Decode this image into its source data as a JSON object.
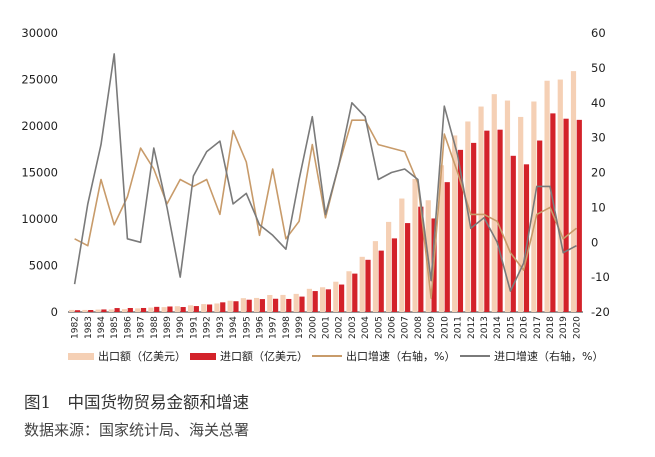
{
  "chart_data": {
    "type": "bar",
    "categories": [
      "1982",
      "1983",
      "1984",
      "1985",
      "1986",
      "1987",
      "1988",
      "1989",
      "1990",
      "1991",
      "1992",
      "1993",
      "1994",
      "1995",
      "1996",
      "1997",
      "1998",
      "1999",
      "2000",
      "2001",
      "2002",
      "2003",
      "2004",
      "2005",
      "2006",
      "2007",
      "2008",
      "2009",
      "2010",
      "2011",
      "2012",
      "2013",
      "2014",
      "2015",
      "2016",
      "2017",
      "2018",
      "2019",
      "2020"
    ],
    "y_left": {
      "ylim": [
        0,
        30000
      ],
      "ticks": [
        "0",
        "5000",
        "10000",
        "15000",
        "20000",
        "25000",
        "30000"
      ]
    },
    "y_right": {
      "ylim": [
        -20,
        60
      ],
      "ticks": [
        "-20",
        "-10",
        "0",
        "10",
        "20",
        "30",
        "40",
        "50",
        "60"
      ]
    },
    "grid": false,
    "legend_position": "bottom",
    "series": [
      {
        "name": "出口额（亿美元）",
        "type": "bar",
        "axis": "left",
        "color": "#f5d0b5",
        "values": [
          223,
          222,
          261,
          274,
          309,
          394,
          475,
          525,
          621,
          719,
          849,
          917,
          1210,
          1488,
          1511,
          1828,
          1837,
          1949,
          2492,
          2661,
          3256,
          4382,
          5933,
          7620,
          9689,
          12200,
          14307,
          12016,
          15778,
          18984,
          20487,
          22090,
          23423,
          22735,
          20976,
          22635,
          24867,
          24995,
          25900
        ]
      },
      {
        "name": "进口额（亿美元）",
        "type": "bar",
        "axis": "left",
        "color": "#d3222a",
        "values": [
          193,
          214,
          274,
          423,
          429,
          432,
          553,
          591,
          534,
          638,
          806,
          1040,
          1157,
          1321,
          1388,
          1424,
          1402,
          1657,
          2251,
          2436,
          2952,
          4128,
          5612,
          6600,
          7915,
          9561,
          11326,
          10059,
          13962,
          17435,
          18184,
          19500,
          19603,
          16796,
          15879,
          18438,
          21357,
          20784,
          20660
        ]
      },
      {
        "name": "出口增速（右轴，%）",
        "type": "line",
        "axis": "right",
        "color": "#c89b6a",
        "values": [
          1,
          -1,
          18,
          5,
          13,
          27,
          21,
          11,
          18,
          16,
          18,
          8,
          32,
          23,
          2,
          21,
          1,
          6,
          28,
          7,
          22,
          35,
          35,
          28,
          27,
          26,
          17,
          -16,
          31,
          20,
          8,
          8,
          6,
          -3,
          -8,
          8,
          10,
          1,
          4
        ]
      },
      {
        "name": "进口增速（右轴，%）",
        "type": "line",
        "axis": "right",
        "color": "#7a7a7a",
        "values": [
          -12,
          11,
          28,
          54,
          1,
          0,
          27,
          10,
          -10,
          19,
          26,
          29,
          11,
          14,
          5,
          2,
          -2,
          18,
          36,
          8,
          22,
          40,
          36,
          18,
          20,
          21,
          18,
          -11,
          39,
          25,
          4,
          7,
          0,
          -14,
          -6,
          16,
          16,
          -3,
          -1
        ]
      }
    ]
  },
  "caption": {
    "title": "图1　中国货物贸易金额和增速",
    "source": "数据来源：国家统计局、海关总署"
  }
}
